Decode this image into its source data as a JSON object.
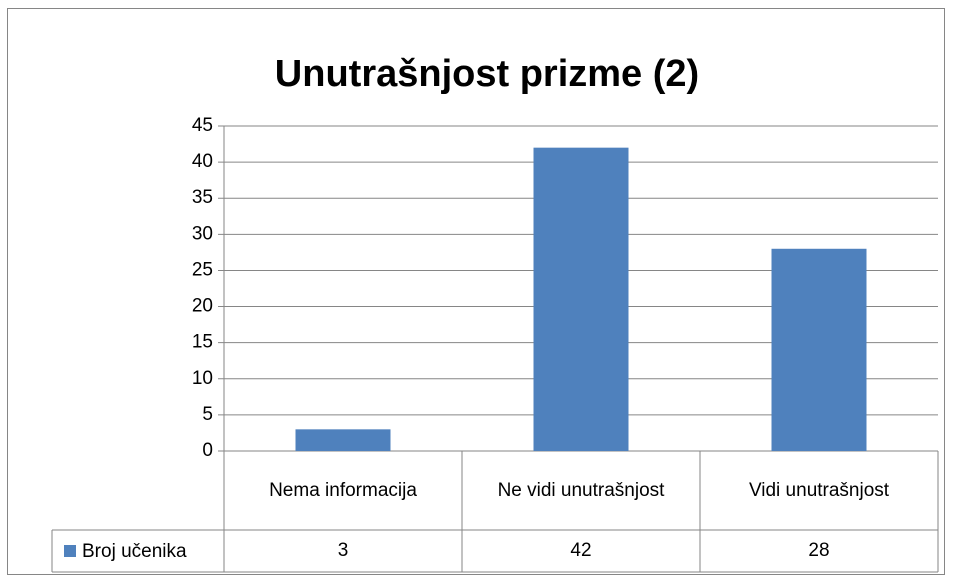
{
  "chart_data": {
    "type": "bar",
    "title": "Unutrašnjost prizme (2)",
    "categories": [
      "Nema informacija",
      "Ne vidi unutrašnjost",
      "Vidi unutrašnjost"
    ],
    "series": [
      {
        "name": "Broj učenika",
        "color": "#4f81bd",
        "values": [
          3,
          42,
          28
        ]
      }
    ],
    "ylim": [
      0,
      45
    ],
    "yticks": [
      0,
      5,
      10,
      15,
      20,
      25,
      30,
      35,
      40,
      45
    ],
    "grid": true,
    "data_table": true
  }
}
